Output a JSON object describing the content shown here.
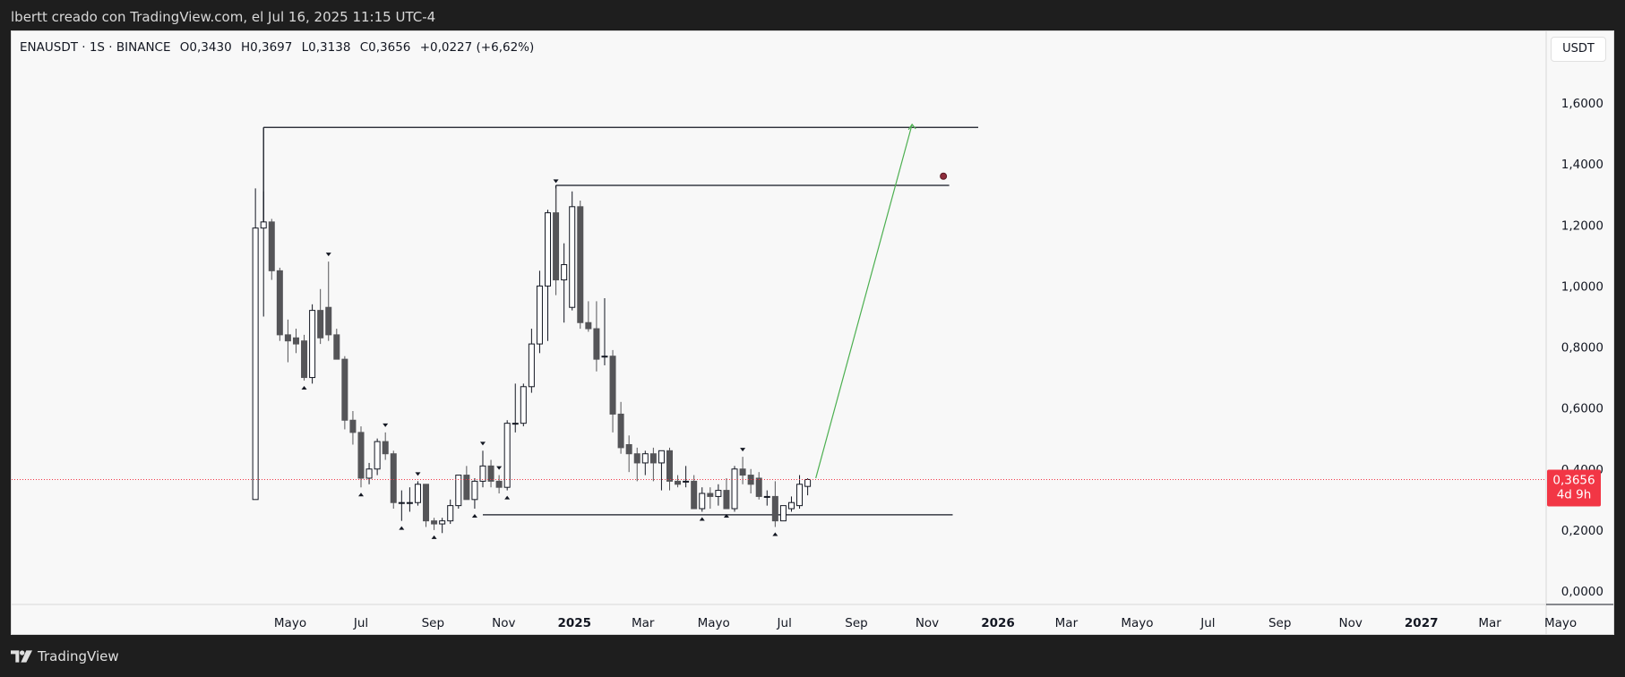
{
  "header": {
    "caption": "lbertt creado con TradingView.com, el Jul 16, 2025 11:15 UTC-4"
  },
  "symbol_line": {
    "symbol": "ENAUSDT · 1S · BINANCE",
    "open": "O0,3430",
    "high": "H0,3697",
    "low": "L0,3138",
    "close": "C0,3656",
    "change": "+0,0227 (+6,62%)"
  },
  "price_axis": {
    "currency": "USDT"
  },
  "last_price": {
    "price": "0,3656",
    "countdown": "4d 9h",
    "color": "#f23645"
  },
  "footer": {
    "brand": "TradingView"
  },
  "colors": {
    "down": "#555558",
    "up": "#ffffff",
    "outline": "#131722",
    "projection": "#4caf50",
    "price_line": "#f23645"
  },
  "chart_data": {
    "type": "candlestick",
    "timeframe": "1W",
    "ylim": [
      0,
      1.7
    ],
    "y_ticks": [
      "1,6000",
      "1,4000",
      "1,2000",
      "1,0000",
      "0,8000",
      "0,6000",
      "0,4000",
      "0,2000",
      "0,0000"
    ],
    "y_tick_values": [
      1.6,
      1.4,
      1.2,
      1.0,
      0.8,
      0.6,
      0.4,
      0.2,
      0.0
    ],
    "x_ticks": [
      {
        "label": "Mayo",
        "date": "2024-05-01"
      },
      {
        "label": "Jul",
        "date": "2024-07-01"
      },
      {
        "label": "Sep",
        "date": "2024-09-01"
      },
      {
        "label": "Nov",
        "date": "2024-11-01"
      },
      {
        "label": "2025",
        "date": "2025-01-01",
        "bold": true
      },
      {
        "label": "Mar",
        "date": "2025-03-01"
      },
      {
        "label": "Mayo",
        "date": "2025-05-01"
      },
      {
        "label": "Jul",
        "date": "2025-07-01"
      },
      {
        "label": "Sep",
        "date": "2025-09-01"
      },
      {
        "label": "Nov",
        "date": "2025-11-01"
      },
      {
        "label": "2026",
        "date": "2026-01-01",
        "bold": true
      },
      {
        "label": "Mar",
        "date": "2026-03-01"
      },
      {
        "label": "Mayo",
        "date": "2026-05-01"
      },
      {
        "label": "Jul",
        "date": "2026-07-01"
      },
      {
        "label": "Sep",
        "date": "2026-09-01"
      },
      {
        "label": "Nov",
        "date": "2026-11-01"
      },
      {
        "label": "2027",
        "date": "2027-01-01",
        "bold": true
      },
      {
        "label": "Mar",
        "date": "2027-03-01"
      },
      {
        "label": "Mayo",
        "date": "2027-05-01"
      }
    ],
    "candles": [
      {
        "date": "2024-04-01",
        "o": 0.3,
        "h": 1.32,
        "l": 0.3,
        "c": 1.19
      },
      {
        "date": "2024-04-08",
        "o": 1.19,
        "h": 1.31,
        "l": 0.9,
        "c": 1.21
      },
      {
        "date": "2024-04-15",
        "o": 1.21,
        "h": 1.22,
        "l": 1.02,
        "c": 1.05
      },
      {
        "date": "2024-04-22",
        "o": 1.05,
        "h": 1.06,
        "l": 0.82,
        "c": 0.84
      },
      {
        "date": "2024-04-29",
        "o": 0.84,
        "h": 0.89,
        "l": 0.75,
        "c": 0.82
      },
      {
        "date": "2024-05-06",
        "o": 0.83,
        "h": 0.86,
        "l": 0.78,
        "c": 0.81
      },
      {
        "date": "2024-05-13",
        "o": 0.82,
        "h": 0.84,
        "l": 0.69,
        "c": 0.7
      },
      {
        "date": "2024-05-20",
        "o": 0.7,
        "h": 0.94,
        "l": 0.68,
        "c": 0.92
      },
      {
        "date": "2024-05-27",
        "o": 0.92,
        "h": 0.99,
        "l": 0.81,
        "c": 0.83
      },
      {
        "date": "2024-06-03",
        "o": 0.93,
        "h": 1.08,
        "l": 0.82,
        "c": 0.84
      },
      {
        "date": "2024-06-10",
        "o": 0.84,
        "h": 0.86,
        "l": 0.77,
        "c": 0.76
      },
      {
        "date": "2024-06-17",
        "o": 0.76,
        "h": 0.77,
        "l": 0.53,
        "c": 0.56
      },
      {
        "date": "2024-06-24",
        "o": 0.56,
        "h": 0.59,
        "l": 0.48,
        "c": 0.52
      },
      {
        "date": "2024-07-01",
        "o": 0.52,
        "h": 0.54,
        "l": 0.34,
        "c": 0.37
      },
      {
        "date": "2024-07-08",
        "o": 0.37,
        "h": 0.42,
        "l": 0.35,
        "c": 0.4
      },
      {
        "date": "2024-07-15",
        "o": 0.4,
        "h": 0.5,
        "l": 0.38,
        "c": 0.49
      },
      {
        "date": "2024-07-22",
        "o": 0.49,
        "h": 0.52,
        "l": 0.43,
        "c": 0.45
      },
      {
        "date": "2024-07-29",
        "o": 0.45,
        "h": 0.46,
        "l": 0.27,
        "c": 0.29
      },
      {
        "date": "2024-08-05",
        "o": 0.29,
        "h": 0.33,
        "l": 0.23,
        "c": 0.29
      },
      {
        "date": "2024-08-12",
        "o": 0.29,
        "h": 0.34,
        "l": 0.26,
        "c": 0.29
      },
      {
        "date": "2024-08-19",
        "o": 0.29,
        "h": 0.36,
        "l": 0.28,
        "c": 0.35
      },
      {
        "date": "2024-08-26",
        "o": 0.35,
        "h": 0.35,
        "l": 0.21,
        "c": 0.23
      },
      {
        "date": "2024-09-02",
        "o": 0.23,
        "h": 0.24,
        "l": 0.2,
        "c": 0.22
      },
      {
        "date": "2024-09-09",
        "o": 0.22,
        "h": 0.24,
        "l": 0.19,
        "c": 0.23
      },
      {
        "date": "2024-09-16",
        "o": 0.23,
        "h": 0.3,
        "l": 0.22,
        "c": 0.28
      },
      {
        "date": "2024-09-23",
        "o": 0.28,
        "h": 0.38,
        "l": 0.27,
        "c": 0.38
      },
      {
        "date": "2024-09-30",
        "o": 0.38,
        "h": 0.41,
        "l": 0.3,
        "c": 0.3
      },
      {
        "date": "2024-10-07",
        "o": 0.3,
        "h": 0.37,
        "l": 0.27,
        "c": 0.36
      },
      {
        "date": "2024-10-14",
        "o": 0.36,
        "h": 0.46,
        "l": 0.34,
        "c": 0.41
      },
      {
        "date": "2024-10-21",
        "o": 0.41,
        "h": 0.43,
        "l": 0.34,
        "c": 0.36
      },
      {
        "date": "2024-10-28",
        "o": 0.36,
        "h": 0.38,
        "l": 0.32,
        "c": 0.34
      },
      {
        "date": "2024-11-04",
        "o": 0.34,
        "h": 0.56,
        "l": 0.33,
        "c": 0.55
      },
      {
        "date": "2024-11-11",
        "o": 0.55,
        "h": 0.68,
        "l": 0.52,
        "c": 0.55
      },
      {
        "date": "2024-11-18",
        "o": 0.55,
        "h": 0.68,
        "l": 0.54,
        "c": 0.67
      },
      {
        "date": "2024-11-25",
        "o": 0.67,
        "h": 0.86,
        "l": 0.65,
        "c": 0.81
      },
      {
        "date": "2024-12-02",
        "o": 0.81,
        "h": 1.05,
        "l": 0.78,
        "c": 1.0
      },
      {
        "date": "2024-12-09",
        "o": 1.0,
        "h": 1.25,
        "l": 0.82,
        "c": 1.24
      },
      {
        "date": "2024-12-16",
        "o": 1.24,
        "h": 1.32,
        "l": 0.97,
        "c": 1.02
      },
      {
        "date": "2024-12-23",
        "o": 1.02,
        "h": 1.14,
        "l": 0.88,
        "c": 1.07
      },
      {
        "date": "2024-12-30",
        "o": 0.93,
        "h": 1.31,
        "l": 0.92,
        "c": 1.26
      },
      {
        "date": "2025-01-06",
        "o": 1.26,
        "h": 1.28,
        "l": 0.86,
        "c": 0.88
      },
      {
        "date": "2025-01-13",
        "o": 0.88,
        "h": 0.95,
        "l": 0.85,
        "c": 0.86
      },
      {
        "date": "2025-01-20",
        "o": 0.86,
        "h": 0.95,
        "l": 0.72,
        "c": 0.76
      },
      {
        "date": "2025-01-27",
        "o": 0.77,
        "h": 0.96,
        "l": 0.74,
        "c": 0.77
      },
      {
        "date": "2025-02-03",
        "o": 0.77,
        "h": 0.79,
        "l": 0.52,
        "c": 0.58
      },
      {
        "date": "2025-02-10",
        "o": 0.58,
        "h": 0.62,
        "l": 0.45,
        "c": 0.47
      },
      {
        "date": "2025-02-17",
        "o": 0.48,
        "h": 0.51,
        "l": 0.39,
        "c": 0.45
      },
      {
        "date": "2025-02-24",
        "o": 0.45,
        "h": 0.47,
        "l": 0.36,
        "c": 0.42
      },
      {
        "date": "2025-03-03",
        "o": 0.42,
        "h": 0.46,
        "l": 0.38,
        "c": 0.45
      },
      {
        "date": "2025-03-10",
        "o": 0.45,
        "h": 0.47,
        "l": 0.36,
        "c": 0.42
      },
      {
        "date": "2025-03-17",
        "o": 0.42,
        "h": 0.46,
        "l": 0.33,
        "c": 0.46
      },
      {
        "date": "2025-03-24",
        "o": 0.46,
        "h": 0.47,
        "l": 0.33,
        "c": 0.36
      },
      {
        "date": "2025-03-31",
        "o": 0.36,
        "h": 0.38,
        "l": 0.34,
        "c": 0.35
      },
      {
        "date": "2025-04-07",
        "o": 0.36,
        "h": 0.41,
        "l": 0.34,
        "c": 0.36
      },
      {
        "date": "2025-04-14",
        "o": 0.36,
        "h": 0.38,
        "l": 0.27,
        "c": 0.27
      },
      {
        "date": "2025-04-21",
        "o": 0.27,
        "h": 0.34,
        "l": 0.26,
        "c": 0.32
      },
      {
        "date": "2025-04-28",
        "o": 0.32,
        "h": 0.34,
        "l": 0.27,
        "c": 0.31
      },
      {
        "date": "2025-05-05",
        "o": 0.31,
        "h": 0.35,
        "l": 0.28,
        "c": 0.33
      },
      {
        "date": "2025-05-12",
        "o": 0.33,
        "h": 0.37,
        "l": 0.27,
        "c": 0.27
      },
      {
        "date": "2025-05-19",
        "o": 0.27,
        "h": 0.41,
        "l": 0.26,
        "c": 0.4
      },
      {
        "date": "2025-05-26",
        "o": 0.4,
        "h": 0.44,
        "l": 0.35,
        "c": 0.38
      },
      {
        "date": "2025-06-02",
        "o": 0.38,
        "h": 0.4,
        "l": 0.32,
        "c": 0.35
      },
      {
        "date": "2025-06-09",
        "o": 0.37,
        "h": 0.39,
        "l": 0.3,
        "c": 0.31
      },
      {
        "date": "2025-06-16",
        "o": 0.31,
        "h": 0.33,
        "l": 0.28,
        "c": 0.31
      },
      {
        "date": "2025-06-23",
        "o": 0.31,
        "h": 0.36,
        "l": 0.21,
        "c": 0.23
      },
      {
        "date": "2025-06-30",
        "o": 0.23,
        "h": 0.28,
        "l": 0.23,
        "c": 0.28
      },
      {
        "date": "2025-07-07",
        "o": 0.27,
        "h": 0.31,
        "l": 0.26,
        "c": 0.29
      },
      {
        "date": "2025-07-14",
        "o": 0.28,
        "h": 0.38,
        "l": 0.27,
        "c": 0.35
      },
      {
        "date": "2025-07-21",
        "o": 0.343,
        "h": 0.3697,
        "l": 0.3138,
        "c": 0.3656
      }
    ],
    "markers_above": [
      {
        "date": "2024-06-03",
        "price": 1.08
      },
      {
        "date": "2024-07-22",
        "price": 0.52
      },
      {
        "date": "2024-08-19",
        "price": 0.36
      },
      {
        "date": "2024-10-14",
        "price": 0.46
      },
      {
        "date": "2024-10-28",
        "price": 0.38
      },
      {
        "date": "2024-12-16",
        "price": 1.32
      },
      {
        "date": "2025-05-26",
        "price": 0.44
      }
    ],
    "markers_below": [
      {
        "date": "2024-05-13",
        "price": 0.69
      },
      {
        "date": "2024-07-01",
        "price": 0.34
      },
      {
        "date": "2024-08-05",
        "price": 0.23
      },
      {
        "date": "2024-09-02",
        "price": 0.2
      },
      {
        "date": "2024-10-07",
        "price": 0.27
      },
      {
        "date": "2024-11-04",
        "price": 0.33
      },
      {
        "date": "2025-04-21",
        "price": 0.26
      },
      {
        "date": "2025-05-12",
        "price": 0.27
      },
      {
        "date": "2025-06-23",
        "price": 0.21
      }
    ],
    "drawings": {
      "hline_top": {
        "price": 1.52,
        "from": "2024-04-08",
        "to": "2025-12-15"
      },
      "hline_top_vertical": {
        "date": "2024-04-08",
        "from_price": 1.52,
        "to_price": 1.2
      },
      "hline_mid": {
        "price": 1.33,
        "from": "2024-12-16",
        "to": "2025-11-20"
      },
      "hline_mid_vertical": {
        "date": "2024-12-16",
        "from_price": 1.33,
        "to_price": 1.24
      },
      "hline_support": {
        "price": 0.25,
        "from": "2024-10-14",
        "to": "2025-11-23"
      },
      "projection": {
        "from_date": "2025-07-28",
        "from_price": 0.37,
        "to_date": "2025-10-19",
        "to_price": 1.53
      },
      "dot": {
        "date": "2025-11-15",
        "price": 1.36
      }
    },
    "price_line": {
      "price": 0.3656
    }
  }
}
